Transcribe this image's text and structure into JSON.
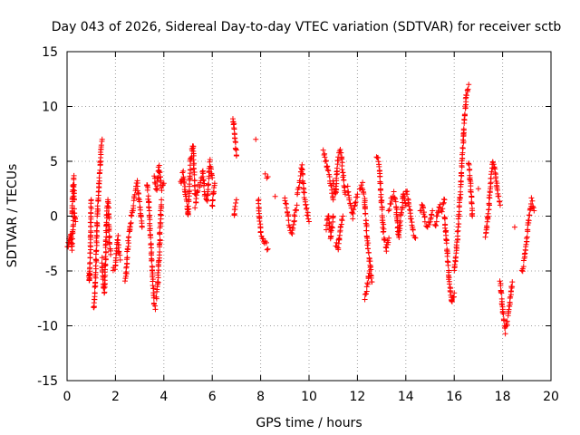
{
  "chart_data": {
    "type": "scatter",
    "title": "Day 043 of 2026, Sidereal Day-to-day VTEC variation (SDTVAR) for receiver sctb",
    "xlabel": "GPS time / hours",
    "ylabel": "SDTVAR / TECUs",
    "xlim": [
      0,
      20
    ],
    "ylim": [
      -15,
      15
    ],
    "grid": true,
    "marker": "+",
    "color": "#ff0000",
    "x_ticks": [
      0,
      2,
      4,
      6,
      8,
      10,
      12,
      14,
      16,
      18,
      20
    ],
    "y_ticks": [
      -15,
      -10,
      -5,
      0,
      5,
      10,
      15
    ],
    "x_tick_labels": [
      "0",
      "2",
      "4",
      "6",
      "8",
      "10",
      "12",
      "14",
      "16",
      "18",
      "20"
    ],
    "y_tick_labels": [
      "-15",
      "-10",
      "-5",
      "0",
      "5",
      "10",
      "15"
    ],
    "series": [
      {
        "name": "SDTVAR",
        "segments": [
          {
            "x": [
              0.0,
              0.05,
              0.1,
              0.15,
              0.2,
              0.25,
              0.3,
              0.35
            ],
            "y": [
              -2.5,
              -2.8,
              -2.0,
              -1.5,
              -3.0,
              -1.0,
              0.5,
              -0.5
            ]
          },
          {
            "x": [
              0.2,
              0.22,
              0.24,
              0.26,
              0.28,
              0.3
            ],
            "y": [
              0.0,
              1.0,
              2.0,
              3.0,
              3.5,
              1.5
            ]
          },
          {
            "x": [
              0.9,
              0.93,
              0.95,
              0.97,
              1.0
            ],
            "y": [
              -5.0,
              -6.0,
              -4.8,
              -1.5,
              1.5
            ]
          },
          {
            "x": [
              1.1,
              1.15,
              1.2,
              1.25,
              1.3,
              1.35,
              1.4,
              1.45
            ],
            "y": [
              -8.5,
              -7.0,
              -4.0,
              0.0,
              2.0,
              4.0,
              6.0,
              7.0
            ]
          },
          {
            "x": [
              1.45,
              1.5,
              1.55,
              1.6,
              1.65,
              1.7,
              1.75,
              1.8
            ],
            "y": [
              -4.0,
              -6.5,
              -7.0,
              -3.0,
              0.5,
              1.5,
              -2.5,
              -3.5
            ]
          },
          {
            "x": [
              1.9,
              2.0,
              2.05,
              2.1,
              2.15,
              2.2
            ],
            "y": [
              -5.0,
              -4.5,
              -3.0,
              -2.0,
              -3.5,
              -4.0
            ]
          },
          {
            "x": [
              2.4,
              2.45,
              2.5,
              2.55,
              2.6
            ],
            "y": [
              -6.0,
              -5.0,
              -3.0,
              -2.0,
              -1.0
            ]
          },
          {
            "x": [
              2.6,
              2.7,
              2.8,
              2.9,
              3.0,
              3.1
            ],
            "y": [
              -1.0,
              0.5,
              2.0,
              3.0,
              1.0,
              -1.0
            ]
          },
          {
            "x": [
              3.3,
              3.35,
              3.4,
              3.45,
              3.5,
              3.55,
              3.6,
              3.65
            ],
            "y": [
              3.0,
              2.0,
              0.5,
              -2.0,
              -4.0,
              -6.0,
              -8.0,
              -8.5
            ]
          },
          {
            "x": [
              3.7,
              3.75,
              3.8,
              3.85,
              3.9
            ],
            "y": [
              -7.5,
              -6.0,
              -4.0,
              -1.0,
              1.5
            ]
          },
          {
            "x": [
              3.6,
              3.7,
              3.8,
              3.9,
              4.0
            ],
            "y": [
              3.5,
              2.5,
              4.5,
              2.5,
              3.0
            ]
          },
          {
            "x": [
              4.7,
              4.8,
              4.9,
              5.0,
              5.1,
              5.2,
              5.3
            ],
            "y": [
              3.0,
              4.0,
              2.0,
              0.0,
              5.0,
              6.5,
              2.0
            ]
          },
          {
            "x": [
              5.3,
              5.4,
              5.5,
              5.6,
              5.7,
              5.8,
              5.9,
              6.0
            ],
            "y": [
              1.0,
              2.5,
              3.0,
              4.0,
              2.0,
              1.5,
              5.0,
              3.5
            ]
          },
          {
            "x": [
              6.0,
              6.05,
              6.1
            ],
            "y": [
              1.0,
              2.0,
              3.0
            ]
          },
          {
            "x": [
              6.85,
              6.9,
              6.95,
              7.0
            ],
            "y": [
              9.0,
              8.0,
              7.0,
              5.5
            ]
          },
          {
            "x": [
              6.9,
              6.95,
              7.0
            ],
            "y": [
              0.0,
              1.0,
              1.5
            ]
          },
          {
            "x": [
              7.8
            ],
            "y": [
              7.0
            ]
          },
          {
            "x": [
              7.9,
              8.0,
              8.1,
              8.2,
              8.3
            ],
            "y": [
              1.5,
              -1.5,
              -2.0,
              -2.5,
              -3.0
            ]
          },
          {
            "x": [
              8.2,
              8.3
            ],
            "y": [
              3.8,
              3.6
            ]
          },
          {
            "x": [
              8.6
            ],
            "y": [
              1.8
            ]
          },
          {
            "x": [
              9.0,
              9.1,
              9.2,
              9.3,
              9.4,
              9.5
            ],
            "y": [
              1.5,
              0.5,
              -1.0,
              -1.5,
              0.0,
              1.0
            ]
          },
          {
            "x": [
              9.5,
              9.6,
              9.7,
              9.8,
              9.9,
              10.0
            ],
            "y": [
              2.0,
              3.0,
              4.5,
              2.0,
              0.5,
              -0.5
            ]
          },
          {
            "x": [
              10.6,
              10.7,
              10.8,
              10.9,
              11.0
            ],
            "y": [
              6.0,
              5.0,
              4.0,
              3.0,
              1.5
            ]
          },
          {
            "x": [
              10.7,
              10.8,
              10.9,
              11.0
            ],
            "y": [
              -1.0,
              0.0,
              -2.0,
              0.0
            ]
          },
          {
            "x": [
              11.0,
              11.1,
              11.2,
              11.3,
              11.4,
              11.5
            ],
            "y": [
              3.0,
              2.0,
              5.5,
              6.0,
              4.0,
              2.0
            ]
          },
          {
            "x": [
              11.1,
              11.2,
              11.3,
              11.4
            ],
            "y": [
              -2.5,
              -3.0,
              -1.0,
              0.0
            ]
          },
          {
            "x": [
              11.6,
              11.7,
              11.8,
              11.9,
              12.0
            ],
            "y": [
              2.5,
              1.0,
              0.0,
              1.0,
              2.0
            ]
          },
          {
            "x": [
              12.1,
              12.2,
              12.3,
              12.4,
              12.5,
              12.6
            ],
            "y": [
              2.5,
              3.0,
              1.5,
              -2.0,
              -4.0,
              -6.0
            ]
          },
          {
            "x": [
              12.3,
              12.4,
              12.5
            ],
            "y": [
              -7.5,
              -6.5,
              -5.0
            ]
          },
          {
            "x": [
              12.8,
              12.9,
              13.0,
              13.1,
              13.2,
              13.3
            ],
            "y": [
              5.5,
              4.5,
              1.0,
              -2.0,
              -3.0,
              -2.0
            ]
          },
          {
            "x": [
              13.3,
              13.4,
              13.5,
              13.6,
              13.7,
              13.8,
              13.9,
              14.0
            ],
            "y": [
              0.5,
              1.5,
              2.0,
              1.0,
              -2.0,
              0.0,
              2.0,
              1.0
            ]
          },
          {
            "x": [
              14.0,
              14.1,
              14.2,
              14.3,
              14.4
            ],
            "y": [
              2.5,
              1.5,
              0.0,
              -1.5,
              -2.0
            ]
          },
          {
            "x": [
              14.6,
              14.7,
              14.8,
              14.9,
              15.0,
              15.1
            ],
            "y": [
              0.5,
              1.0,
              -0.5,
              -1.0,
              -0.5,
              0.5
            ]
          },
          {
            "x": [
              15.2,
              15.3,
              15.4,
              15.5,
              15.6
            ],
            "y": [
              -1.0,
              0.0,
              1.0,
              0.5,
              1.5
            ]
          },
          {
            "x": [
              15.6,
              15.7,
              15.8,
              15.9,
              16.0
            ],
            "y": [
              0.0,
              -3.0,
              -6.0,
              -8.0,
              -7.0
            ]
          },
          {
            "x": [
              16.0,
              16.1,
              16.2,
              16.3,
              16.4,
              16.5,
              16.6
            ],
            "y": [
              -5.0,
              -3.0,
              0.0,
              4.0,
              8.0,
              11.0,
              12.0
            ]
          },
          {
            "x": [
              16.6,
              16.7,
              16.75
            ],
            "y": [
              5.0,
              2.0,
              0.0
            ]
          },
          {
            "x": [
              17.0
            ],
            "y": [
              2.5
            ]
          },
          {
            "x": [
              17.3,
              17.4,
              17.5,
              17.6,
              17.7,
              17.8,
              17.9
            ],
            "y": [
              -2.0,
              0.0,
              3.0,
              5.0,
              4.0,
              2.0,
              1.0
            ]
          },
          {
            "x": [
              17.9,
              18.0,
              18.1,
              18.2,
              18.3,
              18.4
            ],
            "y": [
              -6.0,
              -8.5,
              -10.5,
              -9.5,
              -8.0,
              -6.0
            ]
          },
          {
            "x": [
              18.5
            ],
            "y": [
              -1.0
            ]
          },
          {
            "x": [
              18.8,
              18.9,
              19.0,
              19.1,
              19.2,
              19.3
            ],
            "y": [
              -5.0,
              -4.0,
              -2.0,
              0.0,
              1.5,
              0.5
            ]
          }
        ]
      }
    ]
  }
}
